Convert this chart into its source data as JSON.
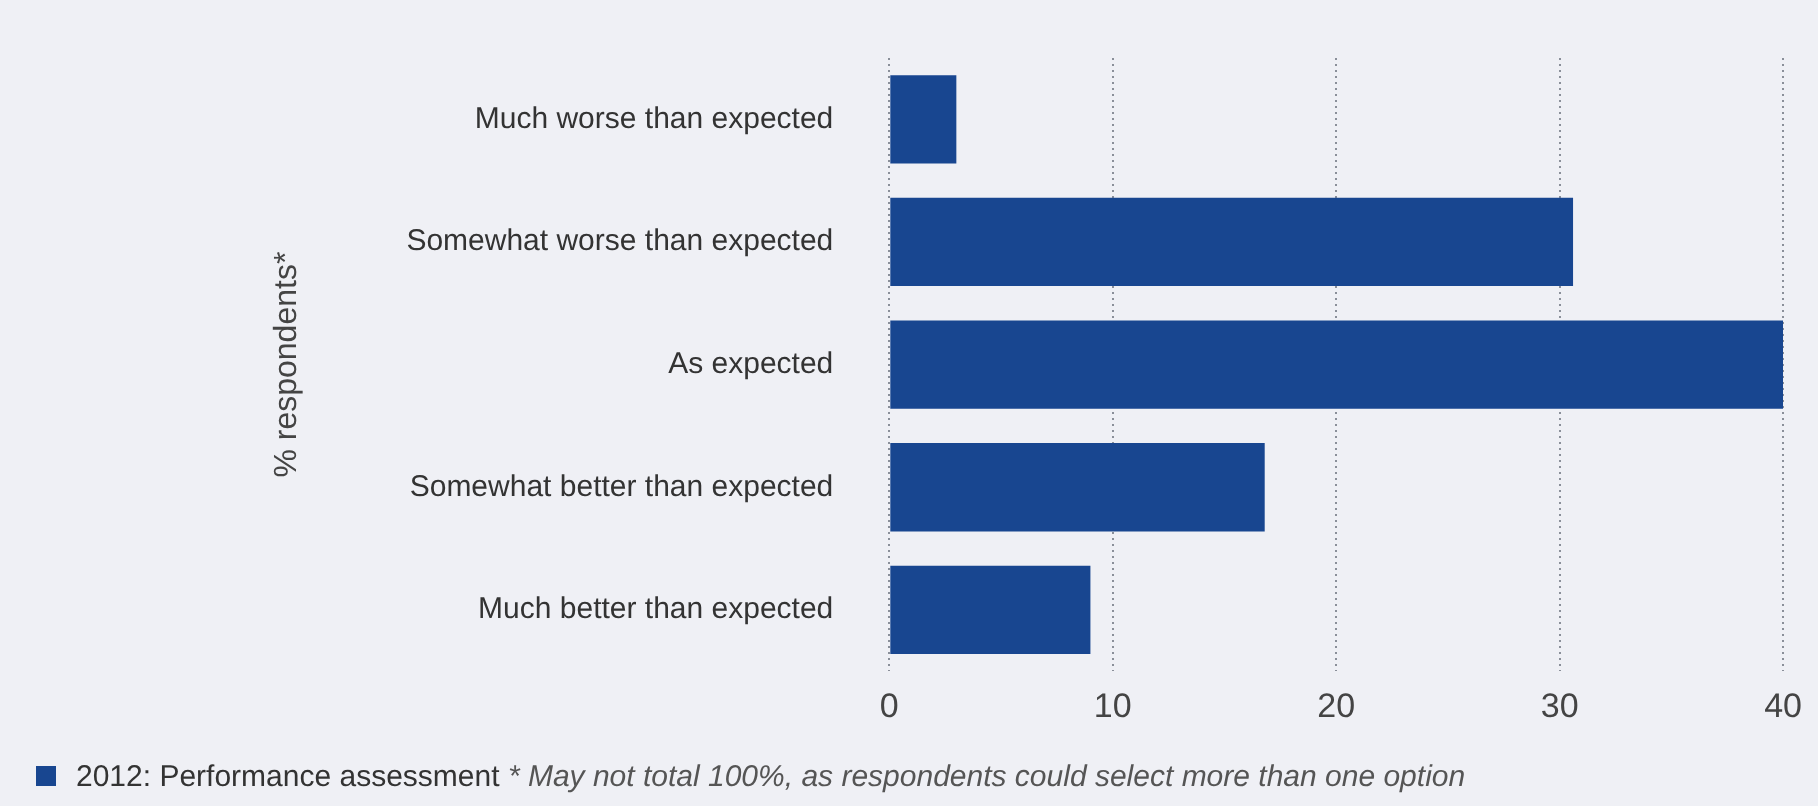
{
  "chart_data": {
    "type": "bar",
    "orientation": "horizontal",
    "ylabel": "% respondents*",
    "categories": [
      "Much worse than expected",
      "Somewhat worse than expected",
      "As expected",
      "Somewhat better than expected",
      "Much better than expected"
    ],
    "series": [
      {
        "name": "2012: Performance assessment",
        "color": "#184690",
        "values": [
          3.0,
          30.6,
          40,
          16.8,
          9.0
        ]
      }
    ],
    "xlim": [
      0,
      40
    ],
    "xticks": [
      0,
      10,
      20,
      30,
      40
    ],
    "grid": "x",
    "legend": "bottom",
    "annotations": [
      "* May not total 100%, as respondents could select more than one option"
    ]
  }
}
